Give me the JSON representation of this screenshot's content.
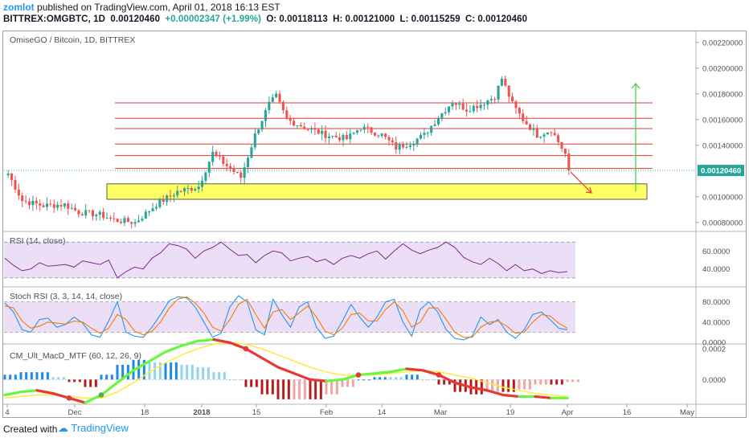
{
  "header": {
    "author": "zomlot",
    "published": "published on TradingView.com, April 01, 2018 16:13 EST",
    "symbol": "BITTREX:OMGBTC, 1D",
    "last": "0.00120460",
    "change": "+0.00002347 (+1.99%)",
    "o_label": "O:",
    "o": "0.00118113",
    "h_label": "H:",
    "h": "0.00121000",
    "l_label": "L:",
    "l": "0.00115259",
    "c_label": "C:",
    "c": "0.00120460"
  },
  "footer": {
    "created_with": "Created with",
    "brand": "TradingView"
  },
  "colors": {
    "up": "#26a69a",
    "down": "#ef5350",
    "hline": "#e53935",
    "zone": "#ffff66",
    "rsi": "#7b2a8c",
    "stoch_k": "#2196f3",
    "stoch_d": "#f57c00",
    "macd_up": "#69f542",
    "macd_down": "#e53935",
    "signal": "#ffeb3b"
  },
  "chart_data": [
    {
      "type": "candlestick",
      "title": "OmiseGO / Bitcoin, 1D, BITTREX",
      "y_ticks": [
        "0.00220000",
        "0.00200000",
        "0.00180000",
        "0.00160000",
        "0.00140000",
        "0.00100000",
        "0.00080000"
      ],
      "ylim": [
        0.00073,
        0.00228
      ],
      "last_price_label": "0.00120460",
      "last_price": 0.0012046,
      "x_ticks": [
        "4",
        "Dec",
        "18",
        "2018",
        "15",
        "Feb",
        "14",
        "Mar",
        "19",
        "Apr",
        "16",
        "May"
      ],
      "horizontal_levels": [
        0.00173,
        0.00161,
        0.00153,
        0.00141,
        0.00132,
        0.00122
      ],
      "support_zone": [
        0.00098,
        0.0011
      ],
      "arrow_up_target": 0.00188,
      "arrow_down_target": 0.00103
    },
    {
      "type": "line",
      "title": "RSI (14, close)",
      "y_ticks": [
        "60.0000",
        "40.0000"
      ],
      "band": [
        30,
        70
      ],
      "values": [
        52,
        44,
        38,
        40,
        47,
        43,
        44,
        45,
        42,
        49,
        47,
        45,
        50,
        30,
        37,
        42,
        40,
        52,
        58,
        68,
        66,
        62,
        52,
        60,
        64,
        70,
        62,
        55,
        56,
        47,
        55,
        60,
        58,
        49,
        52,
        54,
        48,
        51,
        45,
        52,
        55,
        52,
        57,
        60,
        51,
        60,
        68,
        61,
        57,
        61,
        64,
        70,
        64,
        53,
        48,
        45,
        52,
        46,
        38,
        45,
        38,
        40,
        35,
        38,
        36,
        37
      ]
    },
    {
      "type": "line",
      "title": "Stoch RSI (3, 3, 14, 14, close)",
      "y_ticks": [
        "80.0000",
        "40.0000",
        "0.0000"
      ],
      "band": [
        20,
        80
      ],
      "series": [
        {
          "name": "%K",
          "values": [
            78,
            60,
            25,
            20,
            45,
            48,
            30,
            35,
            50,
            38,
            15,
            10,
            42,
            80,
            20,
            12,
            10,
            30,
            55,
            82,
            90,
            88,
            70,
            40,
            10,
            18,
            70,
            92,
            80,
            25,
            15,
            85,
            55,
            30,
            70,
            80,
            30,
            8,
            12,
            42,
            75,
            50,
            30,
            50,
            80,
            85,
            40,
            12,
            65,
            80,
            60,
            25,
            8,
            5,
            12,
            50,
            35,
            45,
            20,
            8,
            25,
            55,
            60,
            45,
            28,
            25
          ]
        },
        {
          "name": "%D",
          "values": [
            72,
            68,
            42,
            28,
            32,
            40,
            38,
            36,
            42,
            40,
            28,
            18,
            28,
            55,
            45,
            22,
            15,
            22,
            40,
            68,
            85,
            90,
            78,
            58,
            30,
            22,
            45,
            75,
            85,
            55,
            28,
            60,
            65,
            45,
            58,
            72,
            50,
            22,
            15,
            28,
            55,
            58,
            42,
            42,
            65,
            80,
            62,
            30,
            40,
            68,
            68,
            45,
            20,
            10,
            10,
            30,
            40,
            42,
            32,
            18,
            20,
            40,
            55,
            52,
            38,
            28
          ]
        }
      ]
    },
    {
      "type": "line",
      "title": "CM_Ult_MacD_MTF (60, 12, 26, 9)",
      "y_ticks": [
        "0.0002",
        "0.0000"
      ],
      "series": [
        {
          "name": "MACD",
          "values": [
            -0.0001,
            -8e-05,
            -7e-05,
            -9e-05,
            -0.00012,
            -0.00015,
            -0.0001,
            -2e-05,
            6e-05,
            0.00012,
            0.00018,
            0.00022,
            0.00025,
            0.00026,
            0.00024,
            0.0002,
            0.00014,
            8e-05,
            4e-05,
            0.0,
            -1e-05,
            0.0,
            3e-05,
            4e-05,
            5e-05,
            7e-05,
            6e-05,
            3e-05,
            -2e-05,
            -5e-05,
            -7e-05,
            -0.0001,
            -0.00011,
            -0.00011,
            -0.00012,
            -0.00012
          ]
        },
        {
          "name": "Signal",
          "values": [
            -0.00012,
            -0.00011,
            -0.0001,
            -0.0001,
            -0.00011,
            -0.00012,
            -0.00012,
            -8e-05,
            -2e-05,
            5e-05,
            0.00011,
            0.00016,
            0.0002,
            0.00023,
            0.00024,
            0.00023,
            0.0002,
            0.00016,
            0.00012,
            8e-05,
            5e-05,
            3e-05,
            3e-05,
            3e-05,
            4e-05,
            5e-05,
            6e-05,
            5e-05,
            3e-05,
            1e-05,
            -2e-05,
            -5e-05,
            -7e-05,
            -9e-05,
            -0.0001,
            -0.00011
          ]
        }
      ]
    }
  ]
}
